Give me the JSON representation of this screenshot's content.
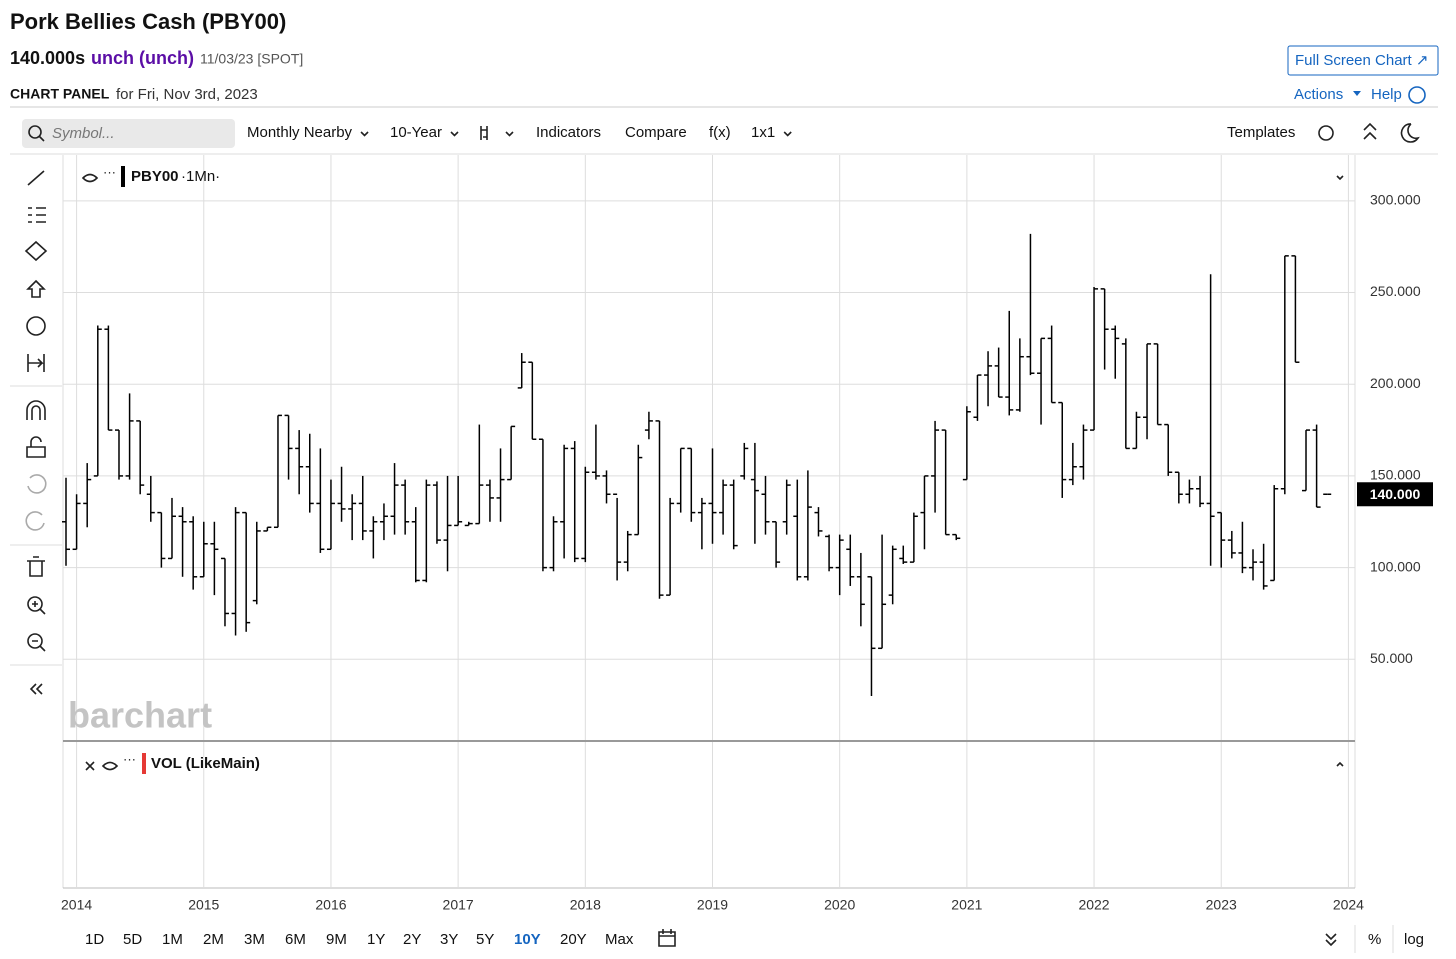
{
  "header": {
    "title": "Pork Bellies Cash (PBY00)",
    "price": "140.000s",
    "change": "unch (unch)",
    "date": "11/03/23 [SPOT]",
    "panel_label": "CHART PANEL",
    "panel_date": "for Fri, Nov 3rd, 2023",
    "full_screen": "Full Screen Chart ↗",
    "actions": "Actions",
    "help": "Help"
  },
  "toolbar": {
    "symbol_placeholder": "Symbol...",
    "items": [
      "Monthly Nearby",
      "10-Year",
      "Indicators",
      "Compare",
      "f(x)",
      "1x1"
    ],
    "templates": "Templates"
  },
  "chart_data": {
    "type": "ohlc",
    "interval": "·1Mn·",
    "watermark": "barchart",
    "volume_label": "VOL (LikeMain)",
    "x": [
      "2013-12",
      "2014-01",
      "2014-02",
      "2014-03",
      "2014-04",
      "2014-05",
      "2014-06",
      "2014-07",
      "2014-08",
      "2014-09",
      "2014-10",
      "2014-11",
      "2014-12",
      "2015-01",
      "2015-02",
      "2015-03",
      "2015-04",
      "2015-05",
      "2015-06",
      "2015-07",
      "2015-08",
      "2015-09",
      "2015-10",
      "2015-11",
      "2015-12",
      "2016-01",
      "2016-02",
      "2016-03",
      "2016-04",
      "2016-05",
      "2016-06",
      "2016-07",
      "2016-08",
      "2016-09",
      "2016-10",
      "2016-11",
      "2016-12",
      "2017-01",
      "2017-02",
      "2017-03",
      "2017-04",
      "2017-05",
      "2017-06",
      "2017-07",
      "2017-08",
      "2017-09",
      "2017-10",
      "2017-11",
      "2017-12",
      "2018-01",
      "2018-02",
      "2018-03",
      "2018-04",
      "2018-05",
      "2018-06",
      "2018-07",
      "2018-08",
      "2018-09",
      "2018-10",
      "2018-11",
      "2018-12",
      "2019-01",
      "2019-02",
      "2019-03",
      "2019-04",
      "2019-05",
      "2019-06",
      "2019-07",
      "2019-08",
      "2019-09",
      "2019-10",
      "2019-11",
      "2019-12",
      "2020-01",
      "2020-02",
      "2020-03",
      "2020-04",
      "2020-05",
      "2020-06",
      "2020-07",
      "2020-08",
      "2020-09",
      "2020-10",
      "2020-11",
      "2020-12",
      "2021-01",
      "2021-02",
      "2021-03",
      "2021-04",
      "2021-05",
      "2021-06",
      "2021-07",
      "2021-08",
      "2021-09",
      "2021-10",
      "2021-11",
      "2021-12",
      "2022-01",
      "2022-02",
      "2022-03",
      "2022-04",
      "2022-05",
      "2022-06",
      "2022-07",
      "2022-08",
      "2022-09",
      "2022-10",
      "2022-11",
      "2022-12",
      "2023-01",
      "2023-02",
      "2023-03",
      "2023-04",
      "2023-05",
      "2023-06",
      "2023-07",
      "2023-08",
      "2023-09",
      "2023-10",
      "2023-11"
    ],
    "series": [
      {
        "name": "PBY00",
        "color": "#000000",
        "open": [
          125,
          110,
          135,
          150,
          230,
          175,
          150,
          180,
          140,
          130,
          105,
          128,
          125,
          95,
          113,
          105,
          75,
          130,
          82,
          120,
          122,
          183,
          165,
          155,
          135,
          110,
          135,
          132,
          135,
          120,
          125,
          128,
          145,
          125,
          93,
          145,
          115,
          123,
          123,
          124,
          145,
          138,
          148,
          198,
          212,
          170,
          100,
          125,
          165,
          105,
          152,
          150,
          140,
          103,
          118,
          175,
          180,
          85,
          135,
          165,
          130,
          135,
          130,
          145,
          150,
          148,
          140,
          125,
          125,
          128,
          95,
          130,
          117,
          100,
          110,
          95,
          95,
          56,
          85,
          105,
          103,
          130,
          150,
          175,
          118,
          148,
          182,
          205,
          210,
          193,
          186,
          215,
          206,
          225,
          190,
          148,
          155,
          175,
          252,
          230,
          222,
          165,
          182,
          222,
          178,
          152,
          140,
          143,
          135,
          130,
          115,
          108,
          100,
          103,
          93,
          143,
          270,
          142,
          175,
          140
        ],
        "high": [
          149,
          140,
          157,
          232,
          232,
          175,
          195,
          180,
          150,
          130,
          138,
          133,
          128,
          125,
          125,
          105,
          133,
          130,
          125,
          122,
          183,
          183,
          175,
          173,
          165,
          148,
          155,
          140,
          150,
          128,
          135,
          157,
          148,
          133,
          148,
          147,
          150,
          150,
          125,
          178,
          148,
          165,
          177,
          217,
          212,
          170,
          128,
          167,
          169,
          155,
          178,
          153,
          138,
          120,
          167,
          185,
          180,
          138,
          165,
          165,
          138,
          165,
          148,
          148,
          168,
          168,
          150,
          125,
          148,
          148,
          153,
          133,
          118,
          118,
          118,
          108,
          95,
          118,
          112,
          112,
          130,
          150,
          180,
          175,
          118,
          188,
          205,
          218,
          220,
          240,
          225,
          282,
          225,
          232,
          190,
          168,
          178,
          253,
          252,
          232,
          225,
          185,
          222,
          222,
          178,
          152,
          148,
          150,
          260,
          130,
          120,
          125,
          110,
          113,
          145,
          270,
          270,
          175,
          178,
          140
        ],
        "low": [
          101,
          110,
          122,
          150,
          175,
          148,
          148,
          140,
          125,
          100,
          105,
          95,
          88,
          95,
          85,
          68,
          63,
          65,
          80,
          120,
          122,
          148,
          140,
          130,
          108,
          110,
          125,
          115,
          115,
          105,
          115,
          118,
          118,
          92,
          92,
          113,
          98,
          123,
          123,
          124,
          125,
          125,
          148,
          198,
          170,
          98,
          98,
          105,
          103,
          103,
          148,
          135,
          93,
          98,
          118,
          170,
          83,
          85,
          130,
          125,
          110,
          113,
          118,
          110,
          148,
          113,
          118,
          100,
          118,
          93,
          93,
          117,
          98,
          85,
          90,
          68,
          30,
          56,
          80,
          102,
          103,
          110,
          130,
          118,
          115,
          148,
          180,
          188,
          193,
          183,
          185,
          205,
          178,
          190,
          138,
          145,
          148,
          175,
          208,
          203,
          165,
          165,
          170,
          178,
          150,
          135,
          135,
          133,
          101,
          100,
          105,
          97,
          93,
          88,
          93,
          140,
          212,
          142,
          133,
          140
        ],
        "close": [
          110,
          135,
          148,
          230,
          175,
          150,
          180,
          145,
          130,
          105,
          128,
          125,
          95,
          113,
          110,
          75,
          130,
          70,
          120,
          122,
          183,
          165,
          155,
          135,
          110,
          135,
          132,
          135,
          120,
          125,
          128,
          145,
          125,
          93,
          145,
          115,
          123,
          125,
          124,
          145,
          138,
          148,
          177,
          212,
          170,
          100,
          125,
          165,
          105,
          152,
          150,
          140,
          103,
          118,
          160,
          180,
          85,
          135,
          165,
          130,
          135,
          130,
          145,
          112,
          165,
          142,
          125,
          103,
          145,
          95,
          133,
          120,
          100,
          115,
          95,
          80,
          56,
          80,
          110,
          103,
          128,
          150,
          175,
          118,
          116,
          185,
          205,
          210,
          193,
          186,
          215,
          206,
          225,
          190,
          148,
          155,
          175,
          252,
          230,
          225,
          165,
          182,
          222,
          178,
          152,
          140,
          143,
          135,
          128,
          115,
          108,
          100,
          103,
          90,
          143,
          270,
          212,
          175,
          133,
          140
        ]
      }
    ],
    "xlim": [
      "2013-12",
      "2024-02"
    ],
    "xticks": [
      2014,
      2015,
      2016,
      2017,
      2018,
      2019,
      2020,
      2021,
      2022,
      2023,
      2024
    ],
    "ylim": [
      6,
      325
    ],
    "yticks": [
      {
        "value": 50,
        "label": "50.000"
      },
      {
        "value": 100,
        "label": "100.000"
      },
      {
        "value": 150,
        "label": "150.000"
      },
      {
        "value": 200,
        "label": "200.000"
      },
      {
        "value": 250,
        "label": "250.000"
      },
      {
        "value": 300,
        "label": "300.000"
      }
    ],
    "grid": true,
    "last_price": {
      "value": 140,
      "label": "140.000"
    }
  },
  "footer": {
    "ranges": [
      "1D",
      "5D",
      "1M",
      "2M",
      "3M",
      "6M",
      "9M",
      "1Y",
      "2Y",
      "3Y",
      "5Y",
      "10Y",
      "20Y",
      "Max"
    ],
    "active_range": 11,
    "percent": "%",
    "log": "log"
  }
}
